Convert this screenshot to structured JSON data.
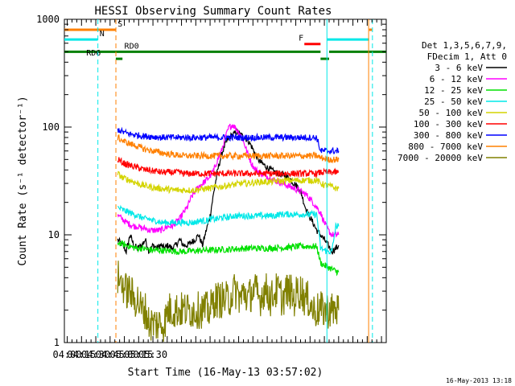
{
  "chart_data": {
    "type": "line",
    "title": "HESSI Observing Summary Count Rates",
    "xlabel": "Start Time (16-May-13 03:57:02)",
    "ylabel": "Count Rate (s⁻¹ detector⁻¹)",
    "yscale": "log",
    "ylim": [
      1,
      1000
    ],
    "xlim_minutes": [
      237,
      575
    ],
    "x_ticks": [
      "04:00",
      "04:15",
      "04:30",
      "04:45",
      "05:00",
      "05:15",
      "05:30"
    ],
    "y_ticks": [
      "1",
      "10",
      "100",
      "1000"
    ],
    "date_stamp": "16-May-2013 13:18",
    "legend": {
      "header_lines": [
        "Det 1,3,5,6,7,9,",
        "FDecim 1, Att 0"
      ],
      "entries": [
        {
          "label": "3 - 6 keV",
          "color": "#000000"
        },
        {
          "label": "6 - 12 keV",
          "color": "#ff00ff"
        },
        {
          "label": "12 - 25 keV",
          "color": "#00e000"
        },
        {
          "label": "25 - 50 keV",
          "color": "#00e8e8"
        },
        {
          "label": "50 - 100 keV",
          "color": "#d4d400"
        },
        {
          "label": "100 - 300 keV",
          "color": "#ff0000"
        },
        {
          "label": "300 - 800 keV",
          "color": "#0000ff"
        },
        {
          "label": "800 - 7000 keV",
          "color": "#ff8000"
        },
        {
          "label": "7000 - 20000 keV",
          "color": "#808000"
        }
      ]
    },
    "flag_bars": [
      {
        "label": "S",
        "color": "#ff8000",
        "value": 800,
        "segments": [
          [
            237,
            291
          ],
          [
            557,
            560
          ]
        ],
        "label_x": 293
      },
      {
        "label": "N",
        "color": "#00e8e8",
        "value": 650,
        "segments": [
          [
            237,
            272
          ],
          [
            513,
            557
          ]
        ],
        "label_x": 274
      },
      {
        "label": "F",
        "color": "#ff0000",
        "value": 590,
        "segments": [
          [
            489,
            506
          ]
        ],
        "label_x": 483
      },
      {
        "label": "RD0",
        "color": "#008000",
        "value": 500,
        "segments": [
          [
            237,
            506
          ],
          [
            515,
            575
          ]
        ],
        "label_x": 300
      },
      {
        "label": "RD6",
        "color": "#008000",
        "value": 430,
        "segments": [
          [
            291,
            298
          ],
          [
            506,
            515
          ]
        ],
        "label_x": 260
      }
    ],
    "vlines": [
      {
        "x": 272.2,
        "color": "#00e8e8",
        "style": "dashed"
      },
      {
        "x": 291.1,
        "color": "#ff8000",
        "style": "dashed"
      },
      {
        "x": 512.7,
        "color": "#00e8e8",
        "style": "solid"
      },
      {
        "x": 556.5,
        "color": "#ff8000",
        "style": "solid"
      },
      {
        "x": 560.5,
        "color": "#00e8e8",
        "style": "dashed"
      }
    ],
    "series": [
      {
        "name": "3 - 6 keV",
        "color": "#000000",
        "x": [
          293,
          298,
          302,
          306,
          310,
          314,
          318,
          322,
          326,
          330,
          334,
          338,
          342,
          346,
          350,
          354,
          358,
          362,
          366,
          370,
          374,
          378,
          382,
          386,
          390,
          394,
          398,
          402,
          406,
          410,
          414,
          418,
          422,
          426,
          430,
          434,
          438,
          442,
          446,
          450,
          454,
          458,
          462,
          466,
          470,
          474,
          478,
          482,
          486,
          490,
          494,
          498,
          502,
          506,
          510,
          514,
          518,
          522,
          525
        ],
        "y": [
          9,
          8,
          7,
          10,
          8,
          7.5,
          8,
          9,
          7,
          8,
          7.5,
          8,
          7.5,
          8,
          7.5,
          8,
          9,
          8,
          8,
          8.5,
          9,
          10,
          8,
          11,
          15,
          25,
          40,
          55,
          70,
          80,
          85,
          90,
          85,
          80,
          75,
          65,
          55,
          48,
          45,
          42,
          40,
          38,
          37,
          36,
          35,
          33,
          30,
          28,
          24,
          18,
          15,
          13,
          11,
          10,
          9,
          8,
          7,
          7.5,
          8
        ]
      },
      {
        "name": "6 - 12 keV",
        "color": "#ff00ff",
        "x": [
          293,
          298,
          302,
          306,
          310,
          314,
          318,
          322,
          326,
          330,
          334,
          338,
          342,
          346,
          350,
          354,
          358,
          362,
          366,
          370,
          374,
          378,
          382,
          386,
          390,
          394,
          398,
          402,
          406,
          410,
          414,
          418,
          422,
          426,
          430,
          434,
          438,
          442,
          446,
          450,
          454,
          458,
          462,
          466,
          470,
          474,
          478,
          482,
          486,
          490,
          494,
          498,
          502,
          506,
          510,
          514,
          518,
          522,
          525
        ],
        "y": [
          15,
          14,
          13,
          12.5,
          12,
          12,
          11.5,
          11.5,
          11,
          11,
          11,
          11,
          11.5,
          12,
          12,
          13,
          14,
          16,
          18,
          22,
          25,
          28,
          30,
          32,
          35,
          40,
          50,
          60,
          80,
          100,
          105,
          95,
          85,
          70,
          55,
          45,
          40,
          38,
          36,
          35,
          33,
          32,
          31,
          30,
          29,
          28,
          27,
          26,
          25,
          24,
          22,
          20,
          18,
          16,
          13,
          11,
          10,
          10,
          10
        ]
      },
      {
        "name": "12 - 25 keV",
        "color": "#00e000",
        "x": [
          293,
          298,
          302,
          306,
          310,
          314,
          318,
          322,
          326,
          330,
          334,
          338,
          342,
          346,
          350,
          354,
          358,
          362,
          366,
          370,
          374,
          378,
          382,
          386,
          390,
          394,
          398,
          402,
          406,
          410,
          414,
          418,
          422,
          426,
          430,
          434,
          438,
          442,
          446,
          450,
          454,
          458,
          462,
          466,
          470,
          474,
          478,
          482,
          486,
          490,
          494,
          498,
          502,
          506,
          510,
          514,
          518,
          522,
          525
        ],
        "y": [
          8.5,
          8.2,
          8,
          7.8,
          7.6,
          7.5,
          7.5,
          7.4,
          7.3,
          7.2,
          7.2,
          7.2,
          7.1,
          7.1,
          7.1,
          7,
          7,
          7,
          7,
          7.1,
          7.1,
          7.1,
          7.2,
          7.2,
          7.2,
          7.2,
          7.3,
          7.3,
          7.3,
          7.3,
          7.4,
          7.4,
          7.4,
          7.5,
          7.5,
          7.5,
          7.5,
          7.5,
          7.5,
          7.5,
          7.5,
          7.6,
          7.6,
          7.6,
          7.6,
          7.7,
          7.7,
          7.8,
          7.8,
          7.8,
          7.8,
          7.8,
          7.8,
          5.5,
          5.2,
          5,
          4.8,
          4.6,
          4.5
        ]
      },
      {
        "name": "25 - 50 keV",
        "color": "#00e8e8",
        "x": [
          293,
          298,
          302,
          306,
          310,
          314,
          318,
          322,
          326,
          330,
          334,
          338,
          342,
          346,
          350,
          354,
          358,
          362,
          366,
          370,
          374,
          378,
          382,
          386,
          390,
          394,
          398,
          402,
          406,
          410,
          414,
          418,
          422,
          426,
          430,
          434,
          438,
          442,
          446,
          450,
          454,
          458,
          462,
          466,
          470,
          474,
          478,
          482,
          486,
          490,
          494,
          498,
          502,
          506,
          510,
          514,
          518,
          522,
          525
        ],
        "y": [
          18,
          17,
          16.5,
          16,
          15.5,
          15,
          14.5,
          14,
          14,
          13.5,
          13.5,
          13,
          13,
          13,
          13,
          13,
          13,
          13,
          13,
          13,
          13,
          13.5,
          13.5,
          13.5,
          14,
          14,
          14,
          14.5,
          14.5,
          14.5,
          15,
          15,
          15,
          15,
          15,
          15,
          15,
          15,
          15,
          15,
          15,
          15,
          15.5,
          15.5,
          15.5,
          15.5,
          15.5,
          15.5,
          15.5,
          15.5,
          15.5,
          15.5,
          15.5,
          7.5,
          7.2,
          7,
          7,
          12,
          12
        ]
      },
      {
        "name": "50 - 100 keV",
        "color": "#d4d400",
        "x": [
          293,
          298,
          302,
          306,
          310,
          314,
          318,
          322,
          326,
          330,
          334,
          338,
          342,
          346,
          350,
          354,
          358,
          362,
          366,
          370,
          374,
          378,
          382,
          386,
          390,
          394,
          398,
          402,
          406,
          410,
          414,
          418,
          422,
          426,
          430,
          434,
          438,
          442,
          446,
          450,
          454,
          458,
          462,
          466,
          470,
          474,
          478,
          482,
          486,
          490,
          494,
          498,
          502,
          506,
          510,
          514,
          518,
          522,
          525
        ],
        "y": [
          37,
          34,
          33,
          32,
          31,
          30,
          29,
          28.5,
          28,
          27.5,
          27,
          27,
          26.5,
          26.5,
          26,
          26,
          26,
          26,
          26,
          26,
          26,
          26.5,
          26.5,
          27,
          27,
          27.5,
          28,
          28,
          28.5,
          29,
          29,
          29.5,
          30,
          30,
          30,
          30.5,
          30.5,
          31,
          31,
          31,
          31,
          31.5,
          31.5,
          31.5,
          32,
          32,
          32,
          32,
          32,
          32,
          32,
          32,
          32,
          30,
          29,
          28.5,
          28,
          27,
          27
        ]
      },
      {
        "name": "100 - 300 keV",
        "color": "#ff0000",
        "x": [
          293,
          298,
          302,
          306,
          310,
          314,
          318,
          322,
          326,
          330,
          334,
          338,
          342,
          346,
          350,
          354,
          358,
          362,
          366,
          370,
          374,
          378,
          382,
          386,
          390,
          394,
          398,
          402,
          406,
          410,
          414,
          418,
          422,
          426,
          430,
          434,
          438,
          442,
          446,
          450,
          454,
          458,
          462,
          466,
          470,
          474,
          478,
          482,
          486,
          490,
          494,
          498,
          502,
          506,
          510,
          514,
          518,
          522,
          525
        ],
        "y": [
          50,
          47,
          45,
          44,
          43,
          42,
          41,
          40,
          40,
          39,
          39,
          38,
          38,
          38,
          38,
          38,
          38,
          37,
          37,
          37,
          37,
          37,
          37,
          37,
          37,
          37,
          37,
          37,
          37,
          37,
          37,
          37,
          37,
          37,
          37,
          37,
          37,
          37,
          37,
          37,
          37,
          37,
          37,
          37,
          37,
          37,
          37,
          37,
          37,
          37,
          37,
          37,
          37,
          38,
          38,
          38,
          38,
          38,
          38
        ]
      },
      {
        "name": "300 - 800 keV",
        "color": "#0000ff",
        "x": [
          293,
          298,
          302,
          306,
          310,
          314,
          318,
          322,
          326,
          330,
          334,
          338,
          342,
          346,
          350,
          354,
          358,
          362,
          366,
          370,
          374,
          378,
          382,
          386,
          390,
          394,
          398,
          402,
          406,
          410,
          414,
          418,
          422,
          426,
          430,
          434,
          438,
          442,
          446,
          450,
          454,
          458,
          462,
          466,
          470,
          474,
          478,
          482,
          486,
          490,
          494,
          498,
          502,
          506,
          510,
          514,
          518,
          522,
          525
        ],
        "y": [
          95,
          90,
          88,
          86,
          85,
          84,
          83,
          82,
          82,
          81,
          81,
          80,
          80,
          80,
          80,
          80,
          80,
          80,
          80,
          80,
          80,
          80,
          80,
          80,
          80,
          80,
          80,
          80,
          80,
          80,
          80,
          80,
          80,
          80,
          80,
          80,
          80,
          80,
          80,
          80,
          80,
          80,
          80,
          80,
          80,
          80,
          80,
          80,
          80,
          80,
          80,
          80,
          80,
          60,
          60,
          60,
          60,
          60,
          60
        ]
      },
      {
        "name": "800 - 7000 keV",
        "color": "#ff8000",
        "x": [
          293,
          298,
          302,
          306,
          310,
          314,
          318,
          322,
          326,
          330,
          334,
          338,
          342,
          346,
          350,
          354,
          358,
          362,
          366,
          370,
          374,
          378,
          382,
          386,
          390,
          394,
          398,
          402,
          406,
          410,
          414,
          418,
          422,
          426,
          430,
          434,
          438,
          442,
          446,
          450,
          454,
          458,
          462,
          466,
          470,
          474,
          478,
          482,
          486,
          490,
          494,
          498,
          502,
          506,
          510,
          514,
          518,
          522,
          525
        ],
        "y": [
          80,
          75,
          72,
          70,
          68,
          66,
          64,
          62,
          61,
          60,
          59,
          58,
          57,
          56,
          56,
          55,
          55,
          54,
          54,
          54,
          54,
          54,
          54,
          54,
          54,
          54,
          54,
          54,
          54,
          54,
          54,
          54,
          54,
          54,
          54,
          54,
          54,
          54,
          54,
          54,
          54,
          54,
          54,
          54,
          54,
          54,
          54,
          54,
          54,
          54,
          54,
          54,
          54,
          52,
          51,
          50,
          50,
          50,
          50
        ]
      },
      {
        "name": "7000 - 20000 keV",
        "color": "#808000",
        "x": [
          293,
          298,
          302,
          306,
          310,
          314,
          318,
          322,
          326,
          330,
          334,
          338,
          342,
          346,
          350,
          354,
          358,
          362,
          366,
          370,
          374,
          378,
          382,
          386,
          390,
          394,
          398,
          402,
          406,
          410,
          414,
          418,
          422,
          426,
          430,
          434,
          438,
          442,
          446,
          450,
          454,
          458,
          462,
          466,
          470,
          474,
          478,
          482,
          486,
          490,
          494,
          498,
          502,
          506,
          510,
          514,
          518,
          522,
          525
        ],
        "y": [
          4,
          3.5,
          3,
          3,
          2.5,
          2.5,
          2,
          2,
          1.5,
          1.5,
          1.5,
          1.5,
          1.5,
          2,
          2,
          2,
          2,
          2,
          2,
          2,
          2,
          2,
          2,
          2,
          2,
          2.5,
          2.5,
          2.5,
          2.5,
          2.5,
          3,
          3,
          2.5,
          3,
          2.5,
          3,
          3,
          2.5,
          3,
          3,
          2.5,
          3,
          3,
          2.5,
          3,
          3,
          2.5,
          3,
          3,
          2.5,
          2.5,
          2,
          2,
          2,
          2,
          2,
          2,
          2,
          2
        ]
      }
    ]
  }
}
